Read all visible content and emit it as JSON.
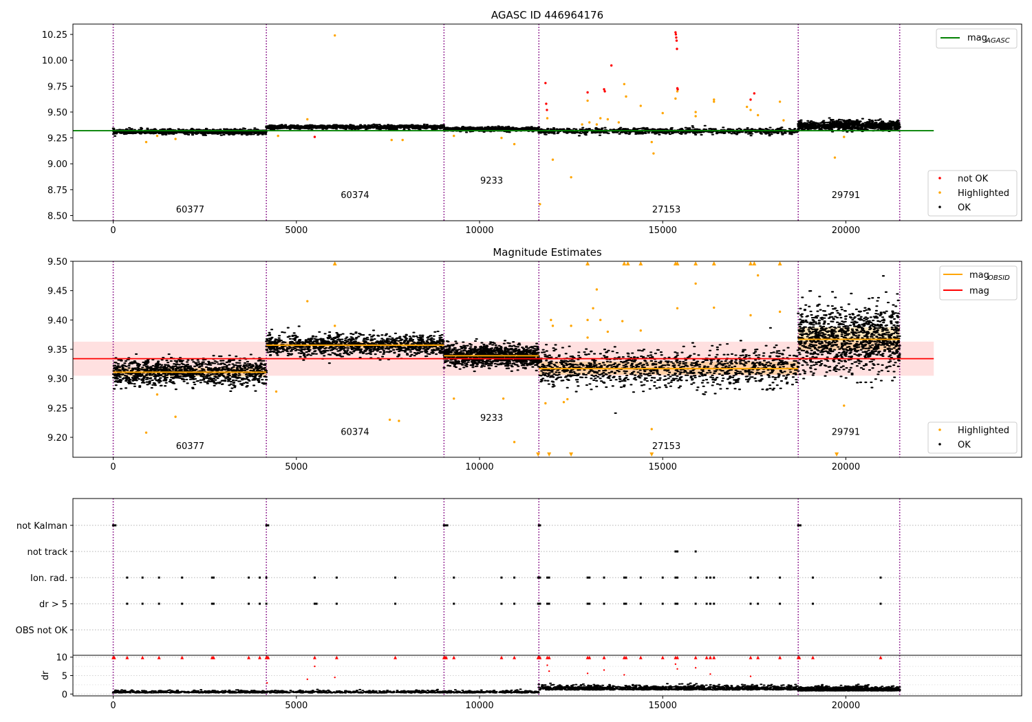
{
  "chart_data": [
    {
      "type": "scatter",
      "title": "AGASC ID 446964176",
      "xlim": [
        -1100,
        24800
      ],
      "ylim": [
        8.45,
        10.35
      ],
      "x_ticks": [
        0,
        5000,
        10000,
        15000,
        20000
      ],
      "y_ticks": [
        8.5,
        8.75,
        9.0,
        9.25,
        9.5,
        9.75,
        10.0,
        10.25
      ],
      "y_tick_labels": [
        "8.50",
        "8.75",
        "9.00",
        "9.25",
        "9.50",
        "9.75",
        "10.00",
        "10.25"
      ],
      "obsid_boundaries": [
        0,
        4180,
        9030,
        11620,
        18700,
        21470
      ],
      "obsids": [
        {
          "label": "60377",
          "x": 2100,
          "y": 8.53
        },
        {
          "label": "60374",
          "x": 6600,
          "y": 8.67
        },
        {
          "label": "9233",
          "x": 10330,
          "y": 8.81
        },
        {
          "label": "27153",
          "x": 15100,
          "y": 8.53
        },
        {
          "label": "29791",
          "x": 20000,
          "y": 8.67
        }
      ],
      "mag_agasc": 9.32,
      "mag_agasc_xrange": [
        -1100,
        22400
      ],
      "segments": [
        {
          "x0": 0,
          "x1": 4180,
          "center": 9.31,
          "spread": 0.012
        },
        {
          "x0": 4180,
          "x1": 9030,
          "center": 9.355,
          "spread": 0.01
        },
        {
          "x0": 9030,
          "x1": 11620,
          "center": 9.335,
          "spread": 0.009
        },
        {
          "x0": 11620,
          "x1": 18700,
          "center": 9.315,
          "spread": 0.014
        },
        {
          "x0": 18700,
          "x1": 21470,
          "center": 9.37,
          "spread": 0.022
        }
      ],
      "highlighted_points": [
        [
          6050,
          10.24
        ],
        [
          900,
          9.21
        ],
        [
          1200,
          9.27
        ],
        [
          1700,
          9.24
        ],
        [
          4500,
          9.27
        ],
        [
          5300,
          9.43
        ],
        [
          7600,
          9.23
        ],
        [
          7900,
          9.23
        ],
        [
          9300,
          9.27
        ],
        [
          10600,
          9.25
        ],
        [
          10950,
          9.19
        ],
        [
          11850,
          9.44
        ],
        [
          12000,
          9.04
        ],
        [
          12500,
          8.87
        ],
        [
          11650,
          8.61
        ],
        [
          12950,
          9.61
        ],
        [
          13300,
          9.44
        ],
        [
          13500,
          9.43
        ],
        [
          13950,
          9.77
        ],
        [
          14000,
          9.65
        ],
        [
          14400,
          9.56
        ],
        [
          14700,
          9.21
        ],
        [
          14750,
          9.1
        ],
        [
          15000,
          9.49
        ],
        [
          15350,
          9.63
        ],
        [
          15400,
          9.7
        ],
        [
          15900,
          9.5
        ],
        [
          15900,
          9.46
        ],
        [
          16400,
          9.62
        ],
        [
          16400,
          9.6
        ],
        [
          17300,
          9.55
        ],
        [
          17400,
          9.52
        ],
        [
          17600,
          9.47
        ],
        [
          18200,
          9.6
        ],
        [
          18300,
          9.42
        ],
        [
          19700,
          9.06
        ],
        [
          19950,
          9.26
        ],
        [
          13000,
          9.4
        ],
        [
          13200,
          9.38
        ],
        [
          13800,
          9.4
        ],
        [
          12800,
          9.38
        ]
      ],
      "not_ok_points": [
        [
          11800,
          9.78
        ],
        [
          11820,
          9.58
        ],
        [
          11840,
          9.52
        ],
        [
          12950,
          9.69
        ],
        [
          13400,
          9.72
        ],
        [
          13420,
          9.7
        ],
        [
          13600,
          9.95
        ],
        [
          15350,
          10.27
        ],
        [
          15360,
          10.25
        ],
        [
          15370,
          10.22
        ],
        [
          15380,
          10.19
        ],
        [
          15390,
          10.11
        ],
        [
          15400,
          9.73
        ],
        [
          15410,
          9.72
        ],
        [
          17400,
          9.62
        ],
        [
          17500,
          9.68
        ],
        [
          5500,
          9.26
        ]
      ],
      "legend_lines": [
        {
          "label": "mag",
          "sub": "AGASC",
          "color": "#008000"
        }
      ],
      "legend_points": [
        {
          "label": "not OK",
          "color": "#ff0000"
        },
        {
          "label": "Highlighted",
          "color": "#ffa500"
        },
        {
          "label": "OK",
          "color": "#000000"
        }
      ]
    },
    {
      "type": "scatter",
      "title": "Magnitude Estimates",
      "xlim": [
        -1100,
        24800
      ],
      "ylim": [
        9.166,
        9.5
      ],
      "x_ticks": [
        0,
        5000,
        10000,
        15000,
        20000
      ],
      "y_ticks": [
        9.2,
        9.25,
        9.3,
        9.35,
        9.4,
        9.45,
        9.5
      ],
      "y_tick_labels": [
        "9.20",
        "9.25",
        "9.30",
        "9.35",
        "9.40",
        "9.45",
        "9.50"
      ],
      "obsid_boundaries": [
        0,
        4180,
        9030,
        11620,
        18700,
        21470
      ],
      "obsids": [
        {
          "label": "60377",
          "x": 2100,
          "y": 9.18
        },
        {
          "label": "60374",
          "x": 6600,
          "y": 9.204
        },
        {
          "label": "9233",
          "x": 10330,
          "y": 9.228
        },
        {
          "label": "27153",
          "x": 15100,
          "y": 9.18
        },
        {
          "label": "29791",
          "x": 20000,
          "y": 9.204
        }
      ],
      "mag": 9.334,
      "mag_band": [
        9.305,
        9.363
      ],
      "mag_xrange": [
        -1100,
        22400
      ],
      "mag_obsid": [
        {
          "x0": 0,
          "x1": 4180,
          "value": 9.311
        },
        {
          "x0": 4180,
          "x1": 9030,
          "value": 9.357
        },
        {
          "x0": 9030,
          "x1": 11620,
          "value": 9.339
        },
        {
          "x0": 11620,
          "x1": 18700,
          "value": 9.317
        },
        {
          "x0": 18700,
          "x1": 21470,
          "value": 9.367
        }
      ],
      "segments": [
        {
          "x0": 0,
          "x1": 4180,
          "center": 9.311,
          "spread": 0.011
        },
        {
          "x0": 4180,
          "x1": 9030,
          "center": 9.357,
          "spread": 0.009
        },
        {
          "x0": 9030,
          "x1": 11620,
          "center": 9.339,
          "spread": 0.009
        },
        {
          "x0": 11620,
          "x1": 18700,
          "center": 9.318,
          "spread": 0.016
        },
        {
          "x0": 18700,
          "x1": 21470,
          "center": 9.368,
          "spread": 0.028
        }
      ],
      "highlighted_points": [
        [
          900,
          9.208
        ],
        [
          1200,
          9.273
        ],
        [
          1700,
          9.235
        ],
        [
          4450,
          9.278
        ],
        [
          5300,
          9.432
        ],
        [
          7550,
          9.23
        ],
        [
          7800,
          9.228
        ],
        [
          9300,
          9.266
        ],
        [
          10650,
          9.266
        ],
        [
          10950,
          9.192
        ],
        [
          11950,
          9.4
        ],
        [
          12000,
          9.39
        ],
        [
          12500,
          9.39
        ],
        [
          12950,
          9.4
        ],
        [
          13200,
          9.452
        ],
        [
          13300,
          9.4
        ],
        [
          13500,
          9.38
        ],
        [
          13900,
          9.398
        ],
        [
          14400,
          9.382
        ],
        [
          14700,
          9.214
        ],
        [
          15400,
          9.42
        ],
        [
          15900,
          9.462
        ],
        [
          16400,
          9.421
        ],
        [
          17400,
          9.408
        ],
        [
          17600,
          9.476
        ],
        [
          18200,
          9.414
        ],
        [
          19950,
          9.254
        ],
        [
          12300,
          9.26
        ],
        [
          12400,
          9.265
        ],
        [
          11800,
          9.258
        ],
        [
          12950,
          9.37
        ],
        [
          13100,
          9.42
        ],
        [
          6050,
          9.39
        ]
      ],
      "clip_up": [
        6050,
        12950,
        13950,
        14050,
        14400,
        15350,
        15400,
        15900,
        16400,
        17400,
        17500,
        18200
      ],
      "clip_down": [
        11600,
        11900,
        12500,
        14700,
        19750
      ],
      "legend_lines": [
        {
          "label": "mag",
          "sub": "OBSID",
          "color": "#ffa500"
        },
        {
          "label": "mag",
          "sub": "",
          "color": "#ff0000"
        }
      ],
      "legend_points": [
        {
          "label": "Highlighted",
          "color": "#ffa500"
        },
        {
          "label": "OK",
          "color": "#000000"
        }
      ]
    },
    {
      "type": "scatter",
      "title": "",
      "xlim": [
        -1100,
        24800
      ],
      "flag_labels": [
        "not Kalman",
        "not track",
        "Ion. rad.",
        "dr > 5",
        "OBS not OK"
      ],
      "obsid_boundaries": [
        0,
        4180,
        9030,
        11620,
        18700,
        21470
      ],
      "flags": {
        "not Kalman": [
          0,
          30,
          60,
          4180,
          4200,
          4230,
          9030,
          9060,
          9090,
          9120,
          11620,
          11650,
          18700,
          18730,
          18760
        ],
        "not track": [
          15350,
          15400,
          15900
        ],
        "Ion. rad.": [
          380,
          800,
          1250,
          1880,
          2700,
          2740,
          3700,
          4000,
          4180,
          5500,
          6100,
          7700,
          9300,
          10600,
          10950,
          11600,
          11620,
          11650,
          11850,
          11900,
          12950,
          13000,
          13400,
          13950,
          14000,
          14400,
          15000,
          15350,
          15400,
          15900,
          16200,
          16300,
          16400,
          17400,
          17600,
          18200,
          19100,
          20950
        ],
        "dr > 5": [
          380,
          800,
          1250,
          1880,
          2700,
          2740,
          3700,
          4000,
          4180,
          5500,
          5550,
          6100,
          7700,
          9300,
          10600,
          10950,
          11600,
          11620,
          11650,
          11850,
          11900,
          12950,
          13000,
          13400,
          13950,
          14000,
          14400,
          15000,
          15350,
          15400,
          15900,
          16200,
          16300,
          16400,
          17400,
          17600,
          18200,
          19100,
          20950
        ],
        "OBS not OK": []
      }
    },
    {
      "type": "scatter",
      "title": "",
      "xlim": [
        -1100,
        24800
      ],
      "ylim": [
        -0.5,
        10.5
      ],
      "x_ticks": [
        0,
        5000,
        10000,
        15000,
        20000
      ],
      "y_ticks": [
        0,
        5,
        10
      ],
      "ylabel": "dr",
      "segments": [
        {
          "x0": 0,
          "x1": 11620,
          "center": 0.45,
          "spread": 0.3
        },
        {
          "x0": 11620,
          "x1": 18700,
          "center": 1.4,
          "spread": 0.6
        },
        {
          "x0": 18700,
          "x1": 21470,
          "center": 1.1,
          "spread": 0.5
        }
      ],
      "outliers": [
        [
          5500,
          7.5
        ],
        [
          6050,
          4.5
        ],
        [
          11850,
          7.8
        ],
        [
          11900,
          6.2
        ],
        [
          12950,
          5.6
        ],
        [
          13400,
          6.5
        ],
        [
          13950,
          5.2
        ],
        [
          15350,
          8.1
        ],
        [
          15400,
          6.8
        ],
        [
          15900,
          7.1
        ],
        [
          16300,
          5.4
        ],
        [
          17400,
          4.8
        ],
        [
          5300,
          4.0
        ],
        [
          4200,
          3.0
        ]
      ],
      "clipped_at_10": [
        0,
        30,
        380,
        800,
        1250,
        1880,
        2700,
        2740,
        3700,
        4000,
        4180,
        4200,
        4230,
        5500,
        6100,
        7700,
        9030,
        9060,
        9090,
        9300,
        10600,
        10950,
        11600,
        11620,
        11650,
        11850,
        11900,
        12950,
        13000,
        13400,
        13950,
        14000,
        14400,
        15000,
        15350,
        15400,
        15900,
        16200,
        16300,
        16400,
        17400,
        17600,
        18200,
        18700,
        18730,
        19100,
        20950
      ]
    }
  ]
}
